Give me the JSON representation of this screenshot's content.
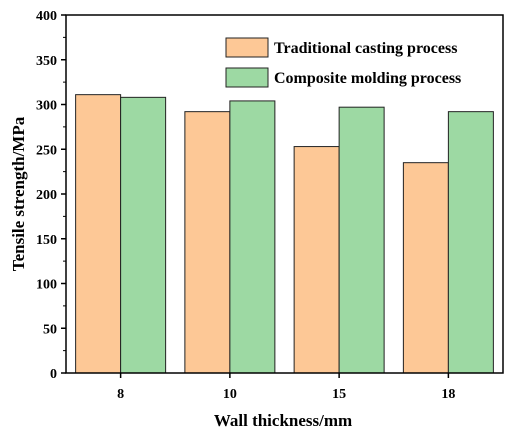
{
  "chart_data": {
    "type": "bar",
    "categories": [
      "8",
      "10",
      "15",
      "18"
    ],
    "series": [
      {
        "name": "Traditional casting process",
        "values": [
          311,
          292,
          253,
          235
        ],
        "color": "#fdc896"
      },
      {
        "name": "Composite molding process",
        "values": [
          308,
          304,
          297,
          292
        ],
        "color": "#9dd9a3"
      }
    ],
    "xlabel": "Wall thickness/mm",
    "ylabel": "Tensile strength/MPa",
    "ylim": [
      0,
      400
    ],
    "yticks": [
      0,
      50,
      100,
      150,
      200,
      250,
      300,
      350,
      400
    ],
    "grid": false,
    "legend_position": "top-right"
  }
}
